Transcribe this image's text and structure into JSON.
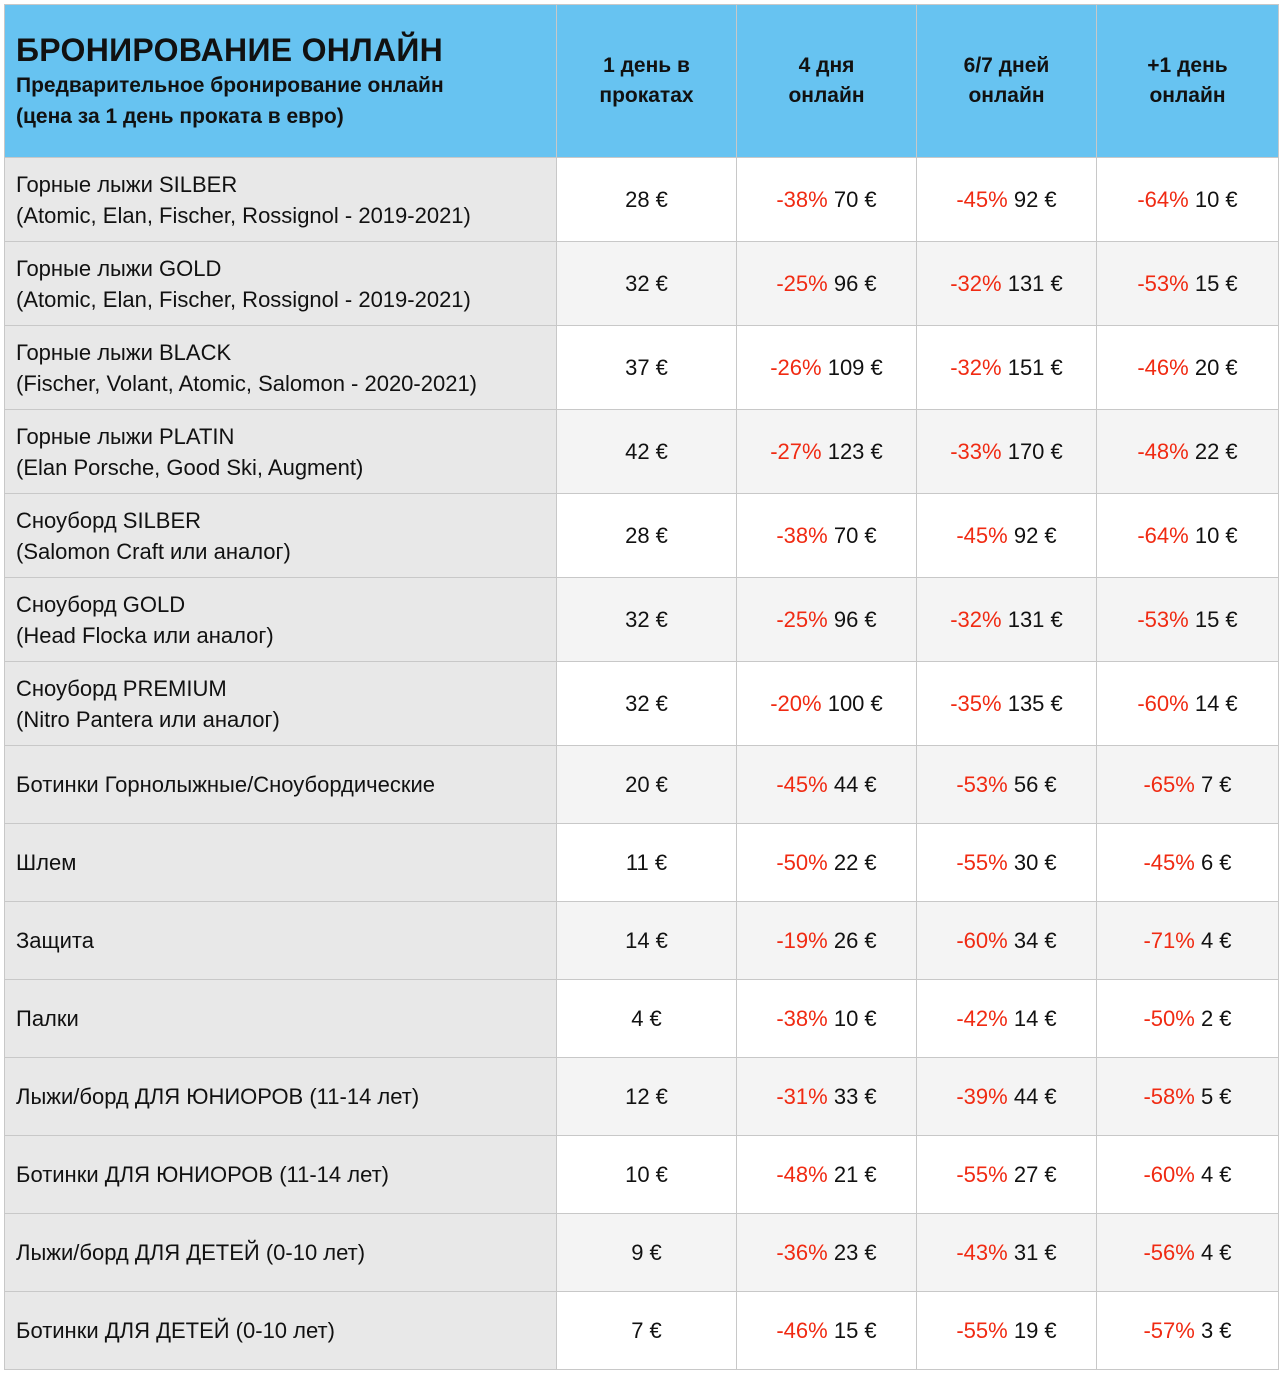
{
  "header": {
    "title": "БРОНИРОВАНИЕ ОНЛАЙН",
    "subtitle_line1": "Предварительное бронирование онлайн",
    "subtitle_line2": "(цена за 1 день проката в евро)",
    "columns": [
      {
        "line1": "1 день в",
        "line2": "прокатах"
      },
      {
        "line1": "4 дня",
        "line2": "онлайн"
      },
      {
        "line1": "6/7 дней",
        "line2": "онлайн"
      },
      {
        "line1": "+1 день",
        "line2": "онлайн"
      }
    ]
  },
  "colors": {
    "header_bg": "#67c3f1",
    "discount": "#f02a12",
    "name_bg": "#e8e8e8"
  },
  "rows": [
    {
      "name": "Горные лыжи SILBER",
      "detail": "(Atomic, Elan, Fischer, Rossignol - 2019-2021)",
      "day1": "28 €",
      "d4_pct": "-38%",
      "d4": "70 €",
      "d67_pct": "-45%",
      "d67": "92 €",
      "plus_pct": "-64%",
      "plus": "10 €"
    },
    {
      "name": "Горные лыжи GOLD",
      "detail": "(Atomic, Elan, Fischer, Rossignol - 2019-2021)",
      "day1": "32 €",
      "d4_pct": "-25%",
      "d4": "96 €",
      "d67_pct": "-32%",
      "d67": "131 €",
      "plus_pct": "-53%",
      "plus": "15 €"
    },
    {
      "name": "Горные лыжи BLACK",
      "detail": "(Fischer, Volant, Atomic, Salomon - 2020-2021)",
      "day1": "37 €",
      "d4_pct": "-26%",
      "d4": "109 €",
      "d67_pct": "-32%",
      "d67": "151 €",
      "plus_pct": "-46%",
      "plus": "20 €"
    },
    {
      "name": "Горные лыжи PLATIN",
      "detail": "(Elan Porsche, Good Ski, Augment)",
      "day1": "42 €",
      "d4_pct": "-27%",
      "d4": "123 €",
      "d67_pct": "-33%",
      "d67": "170 €",
      "plus_pct": "-48%",
      "plus": "22 €"
    },
    {
      "name": "Сноуборд SILBER",
      "detail": "(Salomon Craft или аналог)",
      "day1": "28 €",
      "d4_pct": "-38%",
      "d4": "70 €",
      "d67_pct": "-45%",
      "d67": "92 €",
      "plus_pct": "-64%",
      "plus": "10 €"
    },
    {
      "name": "Сноуборд GOLD",
      "detail": "(Head Flocka или аналог)",
      "day1": "32 €",
      "d4_pct": "-25%",
      "d4": "96 €",
      "d67_pct": "-32%",
      "d67": "131 €",
      "plus_pct": "-53%",
      "plus": "15 €"
    },
    {
      "name": "Сноуборд PREMIUM",
      "detail": "(Nitro Pantera или аналог)",
      "day1": "32 €",
      "d4_pct": "-20%",
      "d4": "100 €",
      "d67_pct": "-35%",
      "d67": "135 €",
      "plus_pct": "-60%",
      "plus": "14 €"
    },
    {
      "name": "Ботинки Горнолыжные/Сноубордические",
      "detail": "",
      "day1": "20 €",
      "d4_pct": "-45%",
      "d4": "44 €",
      "d67_pct": "-53%",
      "d67": "56 €",
      "plus_pct": "-65%",
      "plus": "7 €"
    },
    {
      "name": "Шлем",
      "detail": "",
      "day1": "11 €",
      "d4_pct": "-50%",
      "d4": "22 €",
      "d67_pct": "-55%",
      "d67": "30 €",
      "plus_pct": "-45%",
      "plus": "6 €"
    },
    {
      "name": "Защита",
      "detail": "",
      "day1": "14 €",
      "d4_pct": "-19%",
      "d4": "26 €",
      "d67_pct": "-60%",
      "d67": "34 €",
      "plus_pct": "-71%",
      "plus": "4 €"
    },
    {
      "name": "Палки",
      "detail": "",
      "day1": "4 €",
      "d4_pct": "-38%",
      "d4": "10 €",
      "d67_pct": "-42%",
      "d67": "14 €",
      "plus_pct": "-50%",
      "plus": "2 €"
    },
    {
      "name": "Лыжи/борд ДЛЯ ЮНИОРОВ (11-14 лет)",
      "detail": "",
      "day1": "12 €",
      "d4_pct": "-31%",
      "d4": "33 €",
      "d67_pct": "-39%",
      "d67": "44 €",
      "plus_pct": "-58%",
      "plus": "5 €"
    },
    {
      "name": "Ботинки ДЛЯ ЮНИОРОВ (11-14 лет)",
      "detail": "",
      "day1": "10 €",
      "d4_pct": "-48%",
      "d4": "21 €",
      "d67_pct": "-55%",
      "d67": "27 €",
      "plus_pct": "-60%",
      "plus": "4 €"
    },
    {
      "name": "Лыжи/борд ДЛЯ ДЕТЕЙ (0-10 лет)",
      "detail": "",
      "day1": "9 €",
      "d4_pct": "-36%",
      "d4": "23 €",
      "d67_pct": "-43%",
      "d67": "31 €",
      "plus_pct": "-56%",
      "plus": "4 €"
    },
    {
      "name": "Ботинки ДЛЯ ДЕТЕЙ (0-10 лет)",
      "detail": "",
      "day1": "7 €",
      "d4_pct": "-46%",
      "d4": "15 €",
      "d67_pct": "-55%",
      "d67": "19 €",
      "plus_pct": "-57%",
      "plus": "3 €"
    }
  ]
}
